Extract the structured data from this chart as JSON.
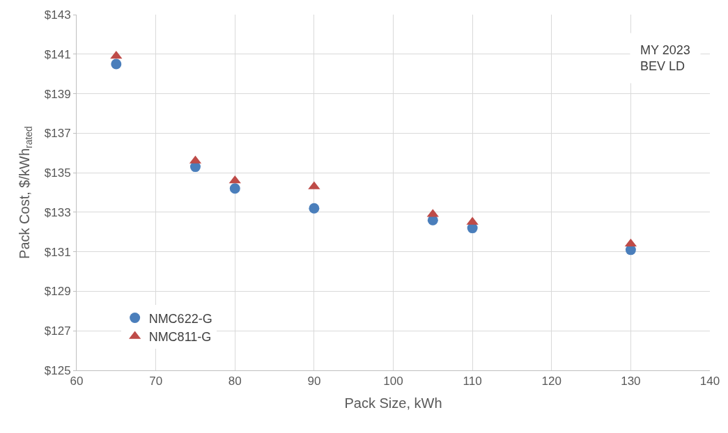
{
  "chart_data": {
    "type": "scatter",
    "xlabel": "Pack Size, kWh",
    "ylabel": "Pack Cost, $/kWh$_{rated}$",
    "x": [
      65,
      75,
      80,
      90,
      105,
      110,
      130
    ],
    "series": [
      {
        "name": "NMC622-G",
        "color": "#4a7ebb",
        "marker": "circle",
        "values": [
          140.5,
          135.3,
          134.2,
          133.2,
          132.6,
          132.2,
          131.1
        ]
      },
      {
        "name": "NMC811-G",
        "color": "#be4b48",
        "marker": "triangle",
        "values": [
          140.9,
          135.6,
          134.6,
          134.3,
          132.9,
          132.5,
          131.4
        ]
      }
    ],
    "xlim": [
      60,
      140
    ],
    "xticks": [
      60,
      70,
      80,
      90,
      100,
      110,
      120,
      130,
      140
    ],
    "ylim": [
      125,
      143
    ],
    "yticks": [
      {
        "value": 125,
        "label": "$125"
      },
      {
        "value": 127,
        "label": "$127"
      },
      {
        "value": 129,
        "label": "$129"
      },
      {
        "value": 131,
        "label": "$131"
      },
      {
        "value": 133,
        "label": "$133"
      },
      {
        "value": 135,
        "label": "$135"
      },
      {
        "value": 137,
        "label": "$137"
      },
      {
        "value": 139,
        "label": "$139"
      },
      {
        "value": 141,
        "label": "$141"
      },
      {
        "value": 143,
        "label": "$143"
      }
    ],
    "grid": true,
    "legend": "bottom left",
    "annotations": [
      "MY 2023\nBEV LD"
    ]
  }
}
